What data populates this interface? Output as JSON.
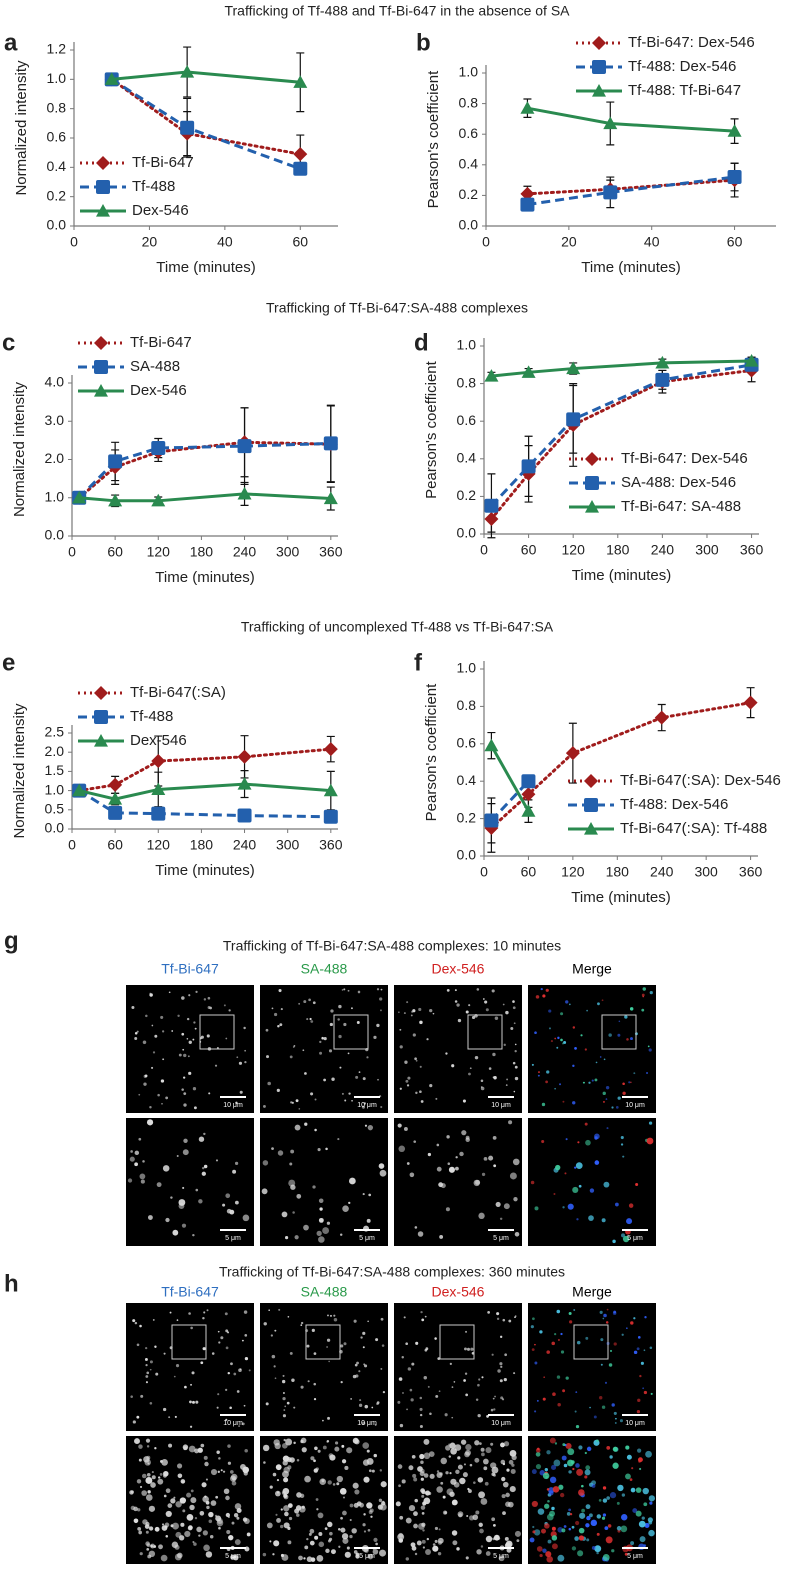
{
  "section_titles": [
    "Trafficking of Tf-488 and Tf-Bi-647 in the absence of SA",
    "Trafficking of Tf-Bi-647:SA-488 complexes",
    "Trafficking of uncomplexed Tf-488 vs Tf-Bi-647:SA"
  ],
  "chart_data": [
    {
      "panel": "a",
      "type": "line",
      "x_label": "Time (minutes)",
      "y_label": "Normalized intensity",
      "x": [
        10,
        30,
        60
      ],
      "xlim": [
        0,
        70
      ],
      "xticks": [
        0,
        20,
        40,
        60
      ],
      "ylim": [
        0,
        1.2
      ],
      "yticks": [
        {
          "value": 0,
          "label": "0.0"
        },
        0.2,
        0.4,
        0.6,
        0.8,
        {
          "value": 1,
          "label": "1.0"
        },
        1.2
      ],
      "legend": "lower left",
      "series": [
        {
          "name": "Tf-Bi-647",
          "color": "#a01c1c",
          "dash": "dotted",
          "marker": "diamond",
          "values": [
            1.0,
            0.63,
            0.49
          ],
          "errors": [
            0,
            0.15,
            0.13
          ]
        },
        {
          "name": "Tf-488",
          "color": "#2360ad",
          "dash": "dashed",
          "marker": "square",
          "values": [
            1.0,
            0.67,
            0.39
          ],
          "errors": [
            0,
            0.2,
            0.02
          ]
        },
        {
          "name": "Dex-546",
          "color": "#2a8a4f",
          "dash": "solid",
          "marker": "triangle",
          "values": [
            1.0,
            1.05,
            0.98
          ],
          "errors": [
            0,
            0.17,
            0.2
          ]
        }
      ]
    },
    {
      "panel": "b",
      "type": "line",
      "x_label": "Time (minutes)",
      "y_label": "Pearson's coefficient",
      "x": [
        10,
        30,
        60
      ],
      "xlim": [
        0,
        70
      ],
      "xticks": [
        0,
        20,
        40,
        60
      ],
      "ylim": [
        0,
        1.0
      ],
      "yticks": [
        {
          "value": 0,
          "label": "0.0"
        },
        0.2,
        0.4,
        0.6,
        0.8,
        {
          "value": 1,
          "label": "1.0"
        }
      ],
      "legend": "upper right",
      "series": [
        {
          "name": "Tf-Bi-647: Dex-546",
          "color": "#a01c1c",
          "dash": "dotted",
          "marker": "diamond",
          "values": [
            0.21,
            0.24,
            0.3
          ],
          "errors": [
            0.05,
            0.06,
            0.11
          ]
        },
        {
          "name": "Tf-488: Dex-546",
          "color": "#2360ad",
          "dash": "dashed",
          "marker": "square",
          "values": [
            0.14,
            0.22,
            0.32
          ],
          "errors": [
            0.03,
            0.1,
            0.09
          ]
        },
        {
          "name": "Tf-488: Tf-Bi-647",
          "color": "#2a8a4f",
          "dash": "solid",
          "marker": "triangle",
          "values": [
            0.77,
            0.67,
            0.62
          ],
          "errors": [
            0.06,
            0.14,
            0.08
          ]
        }
      ]
    },
    {
      "panel": "c",
      "type": "line",
      "x_label": "Time (minutes)",
      "y_label": "Normalized intensity",
      "x": [
        10,
        60,
        120,
        240,
        360
      ],
      "xlim": [
        0,
        370
      ],
      "xticks": [
        0,
        60,
        120,
        180,
        240,
        300,
        360
      ],
      "ylim": [
        0,
        4.0
      ],
      "yticks": [
        {
          "value": 0,
          "label": "0.0"
        },
        {
          "value": 1,
          "label": "1.0"
        },
        {
          "value": 2,
          "label": "2.0"
        },
        {
          "value": 3,
          "label": "3.0"
        },
        {
          "value": 4,
          "label": "4.0"
        }
      ],
      "legend": "upper left",
      "series": [
        {
          "name": "Tf-Bi-647",
          "color": "#a01c1c",
          "dash": "dotted",
          "marker": "diamond",
          "values": [
            1.0,
            1.8,
            2.2,
            2.45,
            2.4
          ],
          "errors": [
            0,
            0.45,
            0.25,
            0.9,
            1.0
          ]
        },
        {
          "name": "SA-488",
          "color": "#2360ad",
          "dash": "dashed",
          "marker": "square",
          "values": [
            1.0,
            1.95,
            2.3,
            2.35,
            2.42
          ],
          "errors": [
            0,
            0.5,
            0.25,
            1.0,
            1.0
          ]
        },
        {
          "name": "Dex-546",
          "color": "#2a8a4f",
          "dash": "solid",
          "marker": "triangle",
          "values": [
            1.0,
            0.92,
            0.92,
            1.1,
            0.98
          ],
          "errors": [
            0.1,
            0.15,
            0.1,
            0.3,
            0.3
          ]
        }
      ]
    },
    {
      "panel": "d",
      "type": "line",
      "x_label": "Time (minutes)",
      "y_label": "Pearson's coefficient",
      "x": [
        10,
        60,
        120,
        240,
        360
      ],
      "xlim": [
        0,
        370
      ],
      "xticks": [
        0,
        60,
        120,
        180,
        240,
        300,
        360
      ],
      "ylim": [
        0,
        1.0
      ],
      "yticks": [
        {
          "value": 0,
          "label": "0.0"
        },
        0.2,
        0.4,
        0.6,
        0.8,
        {
          "value": 1,
          "label": "1.0"
        }
      ],
      "legend": "lower right",
      "series": [
        {
          "name": "Tf-Bi-647: Dex-546",
          "color": "#a01c1c",
          "dash": "dotted",
          "marker": "diamond",
          "values": [
            0.08,
            0.32,
            0.58,
            0.81,
            0.87
          ],
          "errors": [
            0.07,
            0.15,
            0.22,
            0.06,
            0.06
          ]
        },
        {
          "name": "SA-488: Dex-546",
          "color": "#2360ad",
          "dash": "dashed",
          "marker": "square",
          "values": [
            0.15,
            0.36,
            0.61,
            0.82,
            0.9
          ],
          "errors": [
            0.17,
            0.16,
            0.18,
            0.05,
            0.04
          ]
        },
        {
          "name": "Tf-Bi-647: SA-488",
          "color": "#2a8a4f",
          "dash": "solid",
          "marker": "triangle",
          "values": [
            0.84,
            0.86,
            0.88,
            0.91,
            0.92
          ],
          "errors": [
            0.02,
            0.02,
            0.03,
            0.02,
            0.02
          ]
        }
      ]
    },
    {
      "panel": "e",
      "type": "line",
      "x_label": "Time (minutes)",
      "y_label": "Normalized intensity",
      "x": [
        10,
        60,
        120,
        240,
        360
      ],
      "xlim": [
        0,
        370
      ],
      "xticks": [
        0,
        60,
        120,
        180,
        240,
        300,
        360
      ],
      "ylim": [
        0,
        2.5
      ],
      "yticks": [
        {
          "value": 0,
          "label": "0.0"
        },
        0.5,
        {
          "value": 1,
          "label": "1.0"
        },
        1.5,
        {
          "value": 2,
          "label": "2.0"
        },
        2.5
      ],
      "legend": "upper left",
      "series": [
        {
          "name": "Tf-Bi-647(:SA)",
          "color": "#a01c1c",
          "dash": "dotted",
          "marker": "diamond",
          "values": [
            1.0,
            1.15,
            1.77,
            1.88,
            2.08
          ],
          "errors": [
            0.05,
            0.22,
            0.65,
            0.55,
            0.33
          ]
        },
        {
          "name": "Tf-488",
          "color": "#2360ad",
          "dash": "dashed",
          "marker": "square",
          "values": [
            1.0,
            0.42,
            0.4,
            0.35,
            0.32
          ],
          "errors": [
            0.05,
            0.05,
            0.05,
            0.05,
            0.05
          ]
        },
        {
          "name": "Dex-546",
          "color": "#2a8a4f",
          "dash": "solid",
          "marker": "triangle",
          "values": [
            1.0,
            0.78,
            1.03,
            1.17,
            1.0
          ],
          "errors": [
            0.05,
            0.15,
            0.45,
            0.35,
            0.5
          ]
        }
      ]
    },
    {
      "panel": "f",
      "type": "line",
      "x_label": "Time (minutes)",
      "y_label": "Pearson's coefficient",
      "x": [
        10,
        60,
        120,
        240,
        360
      ],
      "xlim": [
        0,
        370
      ],
      "xticks": [
        0,
        60,
        120,
        180,
        240,
        300,
        360
      ],
      "ylim": [
        0,
        1.0
      ],
      "yticks": [
        {
          "value": 0,
          "label": "0.0"
        },
        0.2,
        0.4,
        0.6,
        0.8,
        {
          "value": 1,
          "label": "1.0"
        }
      ],
      "legend": "lower right",
      "series": [
        {
          "name": "Tf-Bi-647(:SA): Dex-546",
          "color": "#a01c1c",
          "dash": "dotted",
          "marker": "diamond",
          "values": [
            0.15,
            0.33,
            0.55,
            0.74,
            0.82
          ],
          "errors": [
            0.13,
            0.07,
            0.16,
            0.07,
            0.08
          ]
        },
        {
          "name": "Tf-488: Dex-546",
          "color": "#2360ad",
          "dash": "dashed",
          "marker": "square",
          "values": [
            0.19,
            0.4,
            null,
            null,
            null
          ],
          "errors": [
            0.12,
            0.03,
            null,
            null,
            null
          ]
        },
        {
          "name": "Tf-Bi-647(:SA): Tf-488",
          "color": "#2a8a4f",
          "dash": "solid",
          "marker": "triangle",
          "values": [
            0.59,
            0.24,
            null,
            null,
            null
          ],
          "errors": [
            0.07,
            0.06,
            null,
            null,
            null
          ]
        }
      ]
    }
  ],
  "microscopy": [
    {
      "panel": "g",
      "title": "Trafficking of Tf-Bi-647:SA-488 complexes: 10 minutes",
      "channels": [
        {
          "label": "Tf-Bi-647",
          "color": "#2f6fc0"
        },
        {
          "label": "SA-488",
          "color": "#2a9a4a"
        },
        {
          "label": "Dex-546",
          "color": "#d02020"
        },
        {
          "label": "Merge",
          "color": "#000000"
        }
      ],
      "scale_bar_top": "10 μm",
      "scale_bar_bottom": "5 μm"
    },
    {
      "panel": "h",
      "title": "Trafficking of Tf-Bi-647:SA-488 complexes: 360 minutes",
      "channels": [
        {
          "label": "Tf-Bi-647",
          "color": "#2f6fc0"
        },
        {
          "label": "SA-488",
          "color": "#2a9a4a"
        },
        {
          "label": "Dex-546",
          "color": "#d02020"
        },
        {
          "label": "Merge",
          "color": "#000000"
        }
      ],
      "scale_bar_top": "10 μm",
      "scale_bar_bottom": "5 μm"
    }
  ]
}
